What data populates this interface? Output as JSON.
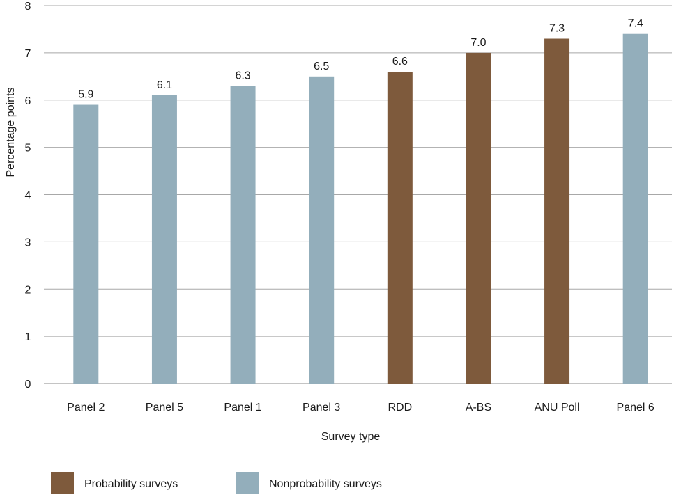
{
  "chart_data": {
    "type": "bar",
    "categories": [
      "Panel 2",
      "Panel 5",
      "Panel 1",
      "Panel 3",
      "RDD",
      "A-BS",
      "ANU Poll",
      "Panel 6"
    ],
    "values": [
      5.9,
      6.1,
      6.3,
      6.5,
      6.6,
      7.0,
      7.3,
      7.4
    ],
    "value_labels": [
      "5.9",
      "6.1",
      "6.3",
      "6.5",
      "6.6",
      "7.0",
      "7.3",
      "7.4"
    ],
    "groups": [
      "Nonprobability surveys",
      "Nonprobability surveys",
      "Nonprobability surveys",
      "Nonprobability surveys",
      "Probability surveys",
      "Probability surveys",
      "Probability surveys",
      "Nonprobability surveys"
    ],
    "title": "",
    "xlabel": "Survey type",
    "ylabel": "Percentage points",
    "ylim": [
      0,
      8
    ],
    "yticks": [
      0,
      1,
      2,
      3,
      4,
      5,
      6,
      7,
      8
    ],
    "grid": true,
    "legend": {
      "placement": "bottom-left",
      "items": [
        {
          "label": "Probability surveys",
          "color": "#7e5a3c"
        },
        {
          "label": "Nonprobability surveys",
          "color": "#93aebb"
        }
      ]
    },
    "colors": {
      "Probability surveys": "#7e5a3c",
      "Nonprobability surveys": "#93aebb"
    }
  }
}
